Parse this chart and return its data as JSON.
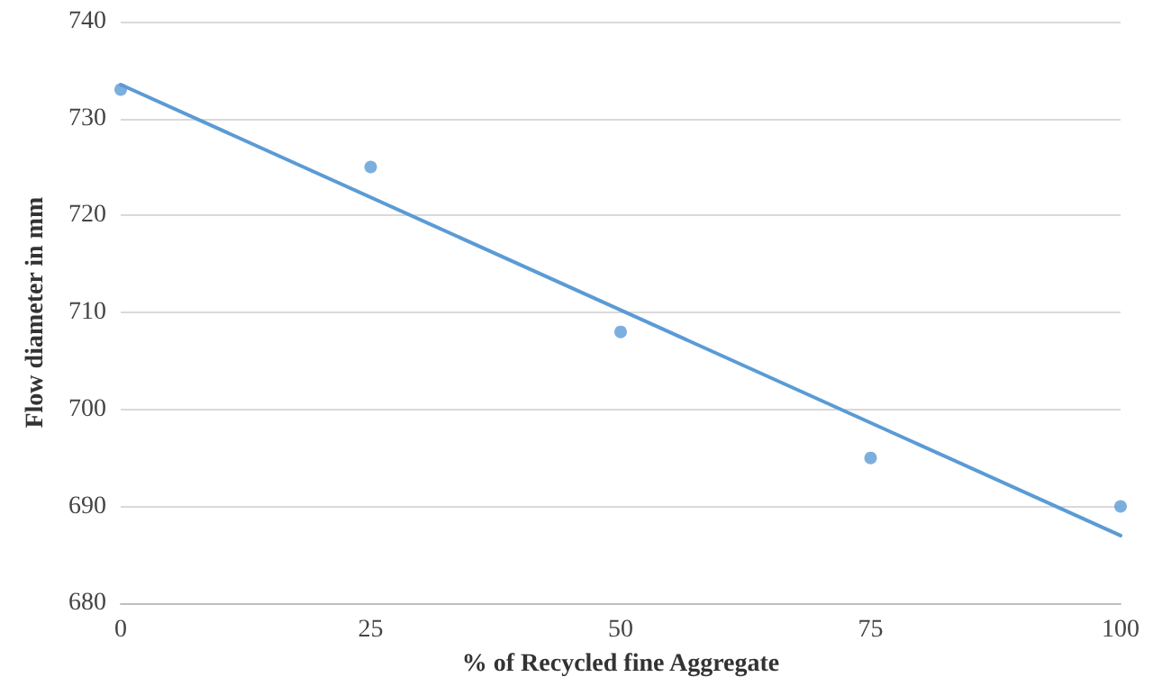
{
  "chart_data": {
    "type": "scatter",
    "xlabel": "% of Recycled fine Aggregate",
    "ylabel": "Flow diameter in mm",
    "xlim": [
      0,
      100
    ],
    "xticks": [
      0,
      25,
      50,
      75,
      100
    ],
    "ylim": [
      680,
      740
    ],
    "yticks": [
      680,
      690,
      700,
      710,
      720,
      730,
      740
    ],
    "grid": "y",
    "marker": "circle",
    "series": [
      {
        "color": "#5b9bd5",
        "x": [
          0,
          25,
          50,
          75,
          100
        ],
        "values": [
          733,
          725,
          708,
          695,
          690
        ]
      },
      {
        "type": "line",
        "color": "#5b9bd5",
        "x": [
          0,
          100
        ],
        "values": [
          733.5,
          687
        ],
        "marker": "none",
        "line_style": "solid"
      }
    ]
  }
}
